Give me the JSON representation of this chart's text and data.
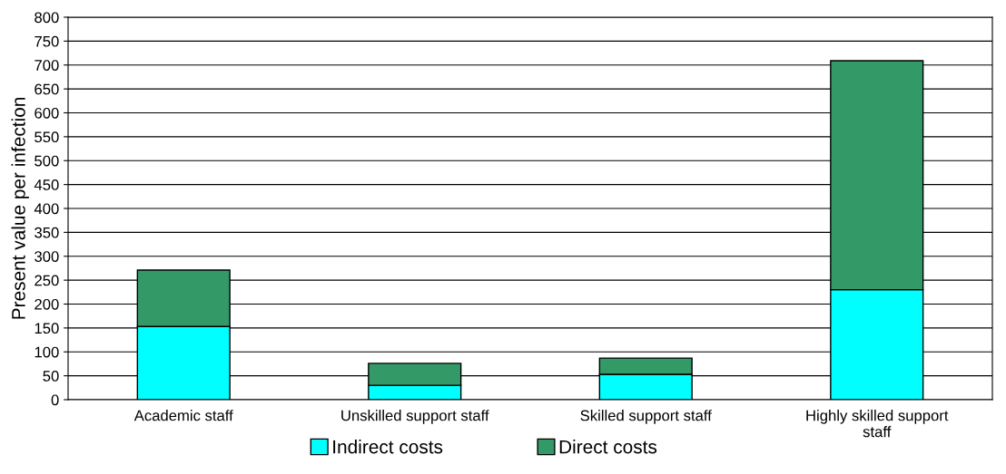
{
  "chart_data": {
    "type": "bar",
    "stacked": true,
    "ylabel": "Present value per infection",
    "categories": [
      "Academic staff",
      "Unskilled support staff",
      "Skilled support staff",
      "Highly skilled support\nstaff"
    ],
    "series": [
      {
        "name": "Indirect costs",
        "color": "#00ffff",
        "values": [
          153,
          30,
          53,
          230
        ]
      },
      {
        "name": "Direct costs",
        "color": "#339966",
        "values": [
          118,
          46,
          34,
          479
        ]
      }
    ],
    "ylim": [
      0,
      800
    ],
    "yticks": [
      0,
      50,
      100,
      150,
      200,
      250,
      300,
      350,
      400,
      450,
      500,
      550,
      600,
      650,
      700,
      750,
      800
    ],
    "grid": "y",
    "legend": "bottom"
  }
}
